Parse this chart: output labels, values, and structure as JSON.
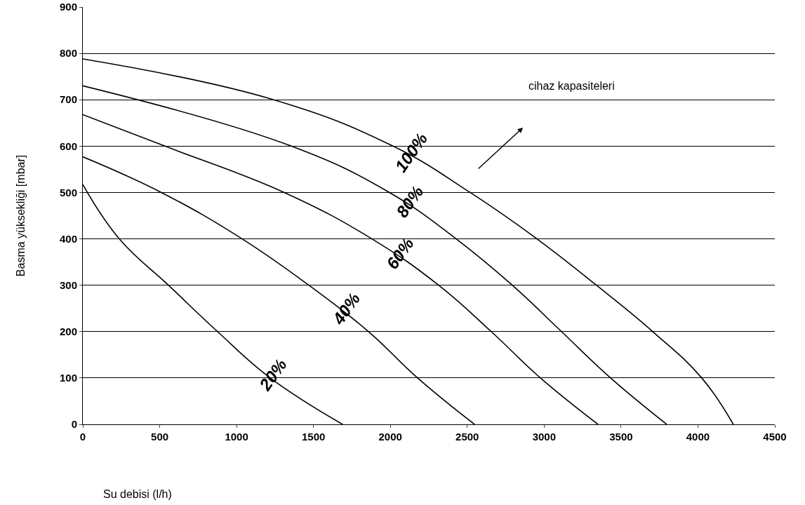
{
  "chart_data": {
    "type": "line",
    "xlabel": "Su debisi (l/h)",
    "ylabel": "Basma yüksekliği [mbar]",
    "xlim": [
      0,
      4500
    ],
    "xticks": [
      0,
      500,
      1000,
      1500,
      2000,
      2500,
      3000,
      3500,
      4000,
      4500
    ],
    "ylim": [
      0,
      900
    ],
    "yticks": [
      0,
      100,
      200,
      300,
      400,
      500,
      600,
      700,
      800,
      900
    ],
    "grid": "y",
    "legend": false,
    "marker": "none",
    "line_style": "solid",
    "series": [
      {
        "name": "100%",
        "color": "#000000",
        "x": [
          0,
          1241,
          2017,
          2519,
          2953,
          3340,
          3706,
          4025,
          4230
        ],
        "values": [
          788,
          700,
          600,
          500,
          400,
          300,
          200,
          100,
          0
        ]
      },
      {
        "name": "80%",
        "color": "#000000",
        "x": [
          0,
          1356,
          1994,
          2428,
          2793,
          3113,
          3432,
          3797
        ],
        "values": [
          730,
          600,
          500,
          400,
          300,
          200,
          100,
          0
        ]
      },
      {
        "name": "60%",
        "color": "#000000",
        "x": [
          0,
          534,
          1310,
          1880,
          2314,
          2656,
          2976,
          3350
        ],
        "values": [
          668,
          600,
          500,
          400,
          300,
          200,
          100,
          0
        ]
      },
      {
        "name": "40%",
        "color": "#000000",
        "x": [
          0,
          511,
          1036,
          1470,
          1858,
          2177,
          2547
        ],
        "values": [
          577,
          500,
          400,
          300,
          200,
          100,
          0
        ]
      },
      {
        "name": "20%",
        "color": "#000000",
        "x": [
          0,
          237,
          557,
          876,
          1219,
          1689
        ],
        "values": [
          517,
          400,
          300,
          200,
          100,
          0
        ]
      }
    ],
    "annotations": [
      "cihaz kapasiteleri"
    ]
  }
}
